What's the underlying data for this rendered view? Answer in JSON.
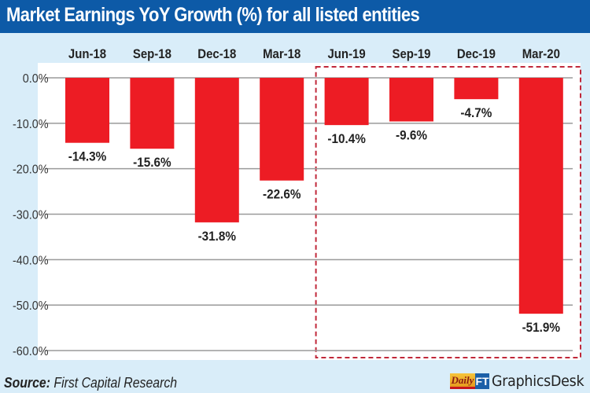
{
  "header": {
    "title": "Market Earnings YoY Growth (%) for all listed entities"
  },
  "footer": {
    "source_label": "Source:",
    "source_text": " First Capital Research",
    "logo_daily": "Daily",
    "logo_ft": "FT",
    "logo_text": "GraphicsDesk"
  },
  "colors": {
    "bar": "#ed1c24",
    "title_bg": "#0d5aa7",
    "background": "#d9edf9",
    "highlight_box": "#c0283a",
    "grid": "#9a9a9a"
  },
  "chart_data": {
    "type": "bar",
    "title": "Market Earnings YoY Growth (%) for all listed entities",
    "xlabel": "",
    "ylabel": "",
    "categories": [
      "Jun-18",
      "Sep-18",
      "Dec-18",
      "Mar-18",
      "Jun-19",
      "Sep-19",
      "Dec-19",
      "Mar-20"
    ],
    "values": [
      -14.3,
      -15.6,
      -31.8,
      -22.6,
      -10.4,
      -9.6,
      -4.7,
      -51.9
    ],
    "data_labels": [
      "-14.3%",
      "-15.6%",
      "-31.8%",
      "-22.6%",
      "-10.4%",
      "-9.6%",
      "-4.7%",
      "-51.9%"
    ],
    "ylim": [
      -60,
      0
    ],
    "yticks": [
      0,
      -10,
      -20,
      -30,
      -40,
      -50,
      -60
    ],
    "ytick_labels": [
      "0.0%",
      "-10.0%",
      "-20.0%",
      "-30.0%",
      "-40.0%",
      "-50.0%",
      "-60.0%"
    ],
    "grid": true,
    "category_axis": "top",
    "highlight_categories": [
      "Jun-19",
      "Sep-19",
      "Dec-19",
      "Mar-20"
    ]
  }
}
